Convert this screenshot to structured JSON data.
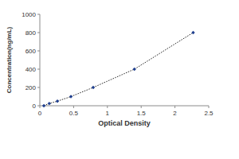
{
  "chart_data": {
    "type": "scatter",
    "x_label": "Optical Density",
    "y_label": "Concentration(ng/mL)",
    "x": [
      0.06,
      0.14,
      0.26,
      0.46,
      0.79,
      1.4,
      2.27
    ],
    "values": [
      0,
      25,
      50,
      100,
      200,
      400,
      800
    ],
    "color": "#1f3f8f",
    "marker": "diamond",
    "line_style": "dotted",
    "xlim": [
      0,
      2.5
    ],
    "xticks": [
      0,
      0.5,
      1,
      1.5,
      2,
      2.5
    ],
    "ylim": [
      0,
      1000
    ],
    "yticks": [
      0,
      200,
      400,
      600,
      800,
      1000
    ],
    "grid": false
  }
}
